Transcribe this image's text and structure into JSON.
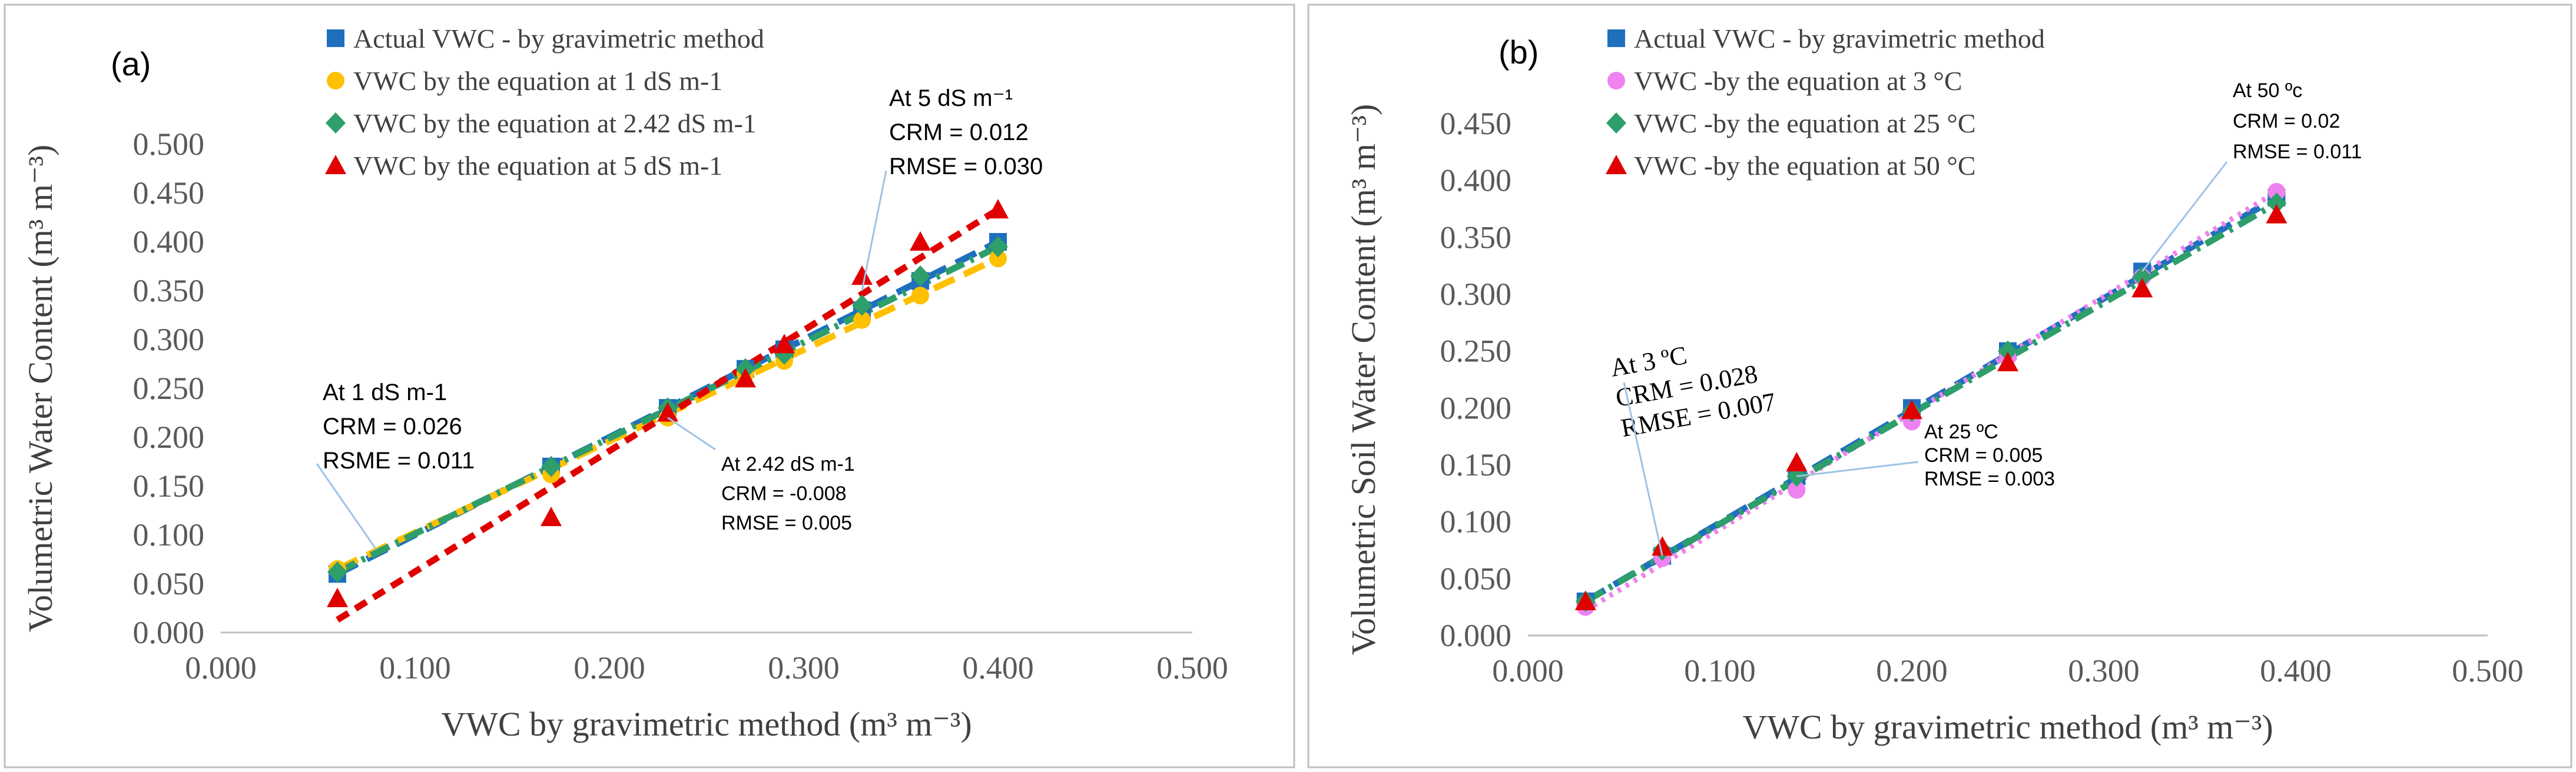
{
  "chart_data": [
    {
      "type": "scatter",
      "panel_label": "(a)",
      "xlabel": "VWC by gravimetric method (m³ m⁻³)",
      "ylabel": "Volumetric Water Content (m³ m⁻³)",
      "xlim": [
        0,
        0.5
      ],
      "ylim": [
        0,
        0.5
      ],
      "x_ticks": [
        0,
        0.1,
        0.2,
        0.3,
        0.4,
        0.5
      ],
      "y_ticks": [
        0,
        0.05,
        0.1,
        0.15,
        0.2,
        0.25,
        0.3,
        0.35,
        0.4,
        0.45,
        0.5
      ],
      "x_tick_labels": [
        "0.000",
        "0.100",
        "0.200",
        "0.300",
        "0.400",
        "0.500"
      ],
      "y_tick_labels": [
        "0.000",
        "0.050",
        "0.100",
        "0.150",
        "0.200",
        "0.250",
        "0.300",
        "0.350",
        "0.400",
        "0.450",
        "0.500"
      ],
      "legend_position": "top-left",
      "series": [
        {
          "name": "Actual VWC - by gravimetric method",
          "color": "#1f6fbf",
          "marker": "square",
          "line": "long-dash",
          "x": [
            0.06,
            0.17,
            0.23,
            0.27,
            0.29,
            0.33,
            0.36,
            0.4
          ],
          "y": [
            0.06,
            0.17,
            0.23,
            0.27,
            0.29,
            0.33,
            0.36,
            0.4
          ],
          "fit": [
            [
              0.06,
              0.06
            ],
            [
              0.4,
              0.4
            ]
          ]
        },
        {
          "name": "VWC by the equation at 1 dS m-1",
          "color": "#ffc000",
          "marker": "circle",
          "line": "long-dash",
          "x": [
            0.06,
            0.17,
            0.23,
            0.27,
            0.29,
            0.33,
            0.36,
            0.4
          ],
          "y": [
            0.065,
            0.162,
            0.22,
            0.265,
            0.278,
            0.32,
            0.345,
            0.383
          ],
          "fit": [
            [
              0.06,
              0.065
            ],
            [
              0.4,
              0.383
            ]
          ]
        },
        {
          "name": "VWC by the equation at 2.42 dS m-1",
          "color": "#2e9e6b",
          "marker": "diamond",
          "line": "dash-dot",
          "x": [
            0.06,
            0.17,
            0.23,
            0.27,
            0.29,
            0.33,
            0.36,
            0.4
          ],
          "y": [
            0.062,
            0.17,
            0.23,
            0.27,
            0.285,
            0.335,
            0.365,
            0.395
          ],
          "fit": [
            [
              0.06,
              0.062
            ],
            [
              0.4,
              0.395
            ]
          ]
        },
        {
          "name": "VWC by the equation at 5 dS m-1",
          "color": "#e00000",
          "marker": "triangle",
          "line": "dash",
          "x": [
            0.06,
            0.17,
            0.23,
            0.27,
            0.29,
            0.33,
            0.36,
            0.4
          ],
          "y": [
            0.035,
            0.118,
            0.225,
            0.26,
            0.295,
            0.365,
            0.4,
            0.433
          ],
          "fit": [
            [
              0.06,
              0.013
            ],
            [
              0.4,
              0.433
            ]
          ]
        }
      ],
      "annotations": [
        {
          "lines": [
            "At 1 dS m-1",
            "CRM = 0.026",
            "RSME = 0.011"
          ],
          "target": [
            0.08,
            0.085
          ]
        },
        {
          "lines": [
            "At 2.42 dS m-1",
            "CRM = -0.008",
            "RMSE = 0.005"
          ],
          "target": [
            0.23,
            0.22
          ]
        },
        {
          "lines": [
            "At 5 dS m⁻¹",
            "CRM = 0.012",
            "RMSE = 0.030"
          ],
          "target": [
            0.33,
            0.35
          ]
        }
      ]
    },
    {
      "type": "scatter",
      "panel_label": "(b)",
      "xlabel": "VWC by gravimetric method (m³ m⁻³)",
      "ylabel": "Volumetric Soil Water Content (m³ m⁻³)",
      "xlim": [
        0,
        0.5
      ],
      "ylim": [
        0,
        0.45
      ],
      "x_ticks": [
        0,
        0.1,
        0.2,
        0.3,
        0.4,
        0.5
      ],
      "y_ticks": [
        0,
        0.05,
        0.1,
        0.15,
        0.2,
        0.25,
        0.3,
        0.35,
        0.4,
        0.45
      ],
      "x_tick_labels": [
        "0.000",
        "0.100",
        "0.200",
        "0.300",
        "0.400",
        "0.500"
      ],
      "y_tick_labels": [
        "0.000",
        "0.050",
        "0.100",
        "0.150",
        "0.200",
        "0.250",
        "0.300",
        "0.350",
        "0.400",
        "0.450"
      ],
      "legend_position": "top-left",
      "series": [
        {
          "name": "Actual VWC - by gravimetric method",
          "color": "#1f6fbf",
          "marker": "square",
          "line": "long-dash",
          "x": [
            0.03,
            0.07,
            0.14,
            0.2,
            0.25,
            0.32,
            0.39
          ],
          "y": [
            0.03,
            0.07,
            0.14,
            0.2,
            0.25,
            0.32,
            0.385
          ],
          "fit": [
            [
              0.03,
              0.03
            ],
            [
              0.39,
              0.385
            ]
          ]
        },
        {
          "name": "VWC -by the equation at 3 °C",
          "color": "#ee82ee",
          "marker": "circle",
          "line": "dotted",
          "x": [
            0.03,
            0.07,
            0.14,
            0.2,
            0.25,
            0.32,
            0.39
          ],
          "y": [
            0.025,
            0.068,
            0.128,
            0.188,
            0.245,
            0.315,
            0.39
          ],
          "fit": [
            [
              0.03,
              0.022
            ],
            [
              0.39,
              0.39
            ]
          ]
        },
        {
          "name": "VWC -by the equation at 25 °C",
          "color": "#2e9e6b",
          "marker": "diamond",
          "line": "dash-dot",
          "x": [
            0.03,
            0.07,
            0.14,
            0.2,
            0.25,
            0.32,
            0.39
          ],
          "y": [
            0.03,
            0.075,
            0.14,
            0.197,
            0.25,
            0.315,
            0.38
          ],
          "fit": [
            [
              0.03,
              0.03
            ],
            [
              0.39,
              0.38
            ]
          ]
        },
        {
          "name": "VWC -by the equation at 50 °C",
          "color": "#e00000",
          "marker": "triangle",
          "line": "none",
          "x": [
            0.03,
            0.07,
            0.14,
            0.2,
            0.25,
            0.32,
            0.39
          ],
          "y": [
            0.03,
            0.078,
            0.152,
            0.198,
            0.24,
            0.305,
            0.37
          ],
          "fit": null
        }
      ],
      "annotations": [
        {
          "lines": [
            "At 3 ºC",
            "CRM = 0.028",
            "RMSE = 0.007"
          ],
          "target": [
            0.07,
            0.07
          ]
        },
        {
          "lines": [
            "At 25 ºC",
            "CRM =  0.005",
            "RMSE = 0.003"
          ],
          "target": [
            0.14,
            0.14
          ]
        },
        {
          "lines": [
            "At 50 ºc",
            "CRM = 0.02",
            "RMSE = 0.011"
          ],
          "target": [
            0.32,
            0.32
          ]
        }
      ]
    }
  ]
}
